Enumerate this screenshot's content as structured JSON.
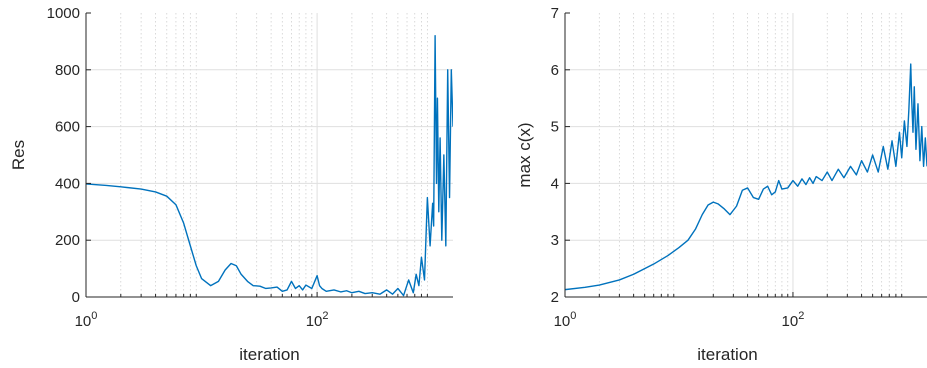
{
  "chart_data": [
    {
      "type": "line",
      "xlabel": "iteration",
      "ylabel": "Res",
      "xscale": "log",
      "xlim": [
        1,
        1500
      ],
      "ylim": [
        0,
        1000
      ],
      "xticks": [
        1,
        100
      ],
      "xtick_labels": [
        {
          "base": "10",
          "exp": "0"
        },
        {
          "base": "10",
          "exp": "2"
        }
      ],
      "yticks": [
        0,
        200,
        400,
        600,
        800,
        1000
      ],
      "ytick_labels": [
        "0",
        "200",
        "400",
        "600",
        "800",
        "1000"
      ],
      "grid": true,
      "color": "#0072bd",
      "series": [
        {
          "x": [
            1,
            1.5,
            2,
            3,
            4,
            5,
            6,
            7,
            8,
            9,
            10,
            12,
            14,
            16,
            18,
            20,
            22,
            25,
            28,
            32,
            36,
            40,
            45,
            50,
            55,
            60,
            65,
            70,
            75,
            80,
            90,
            100,
            105,
            110,
            120,
            140,
            160,
            180,
            200,
            230,
            260,
            300,
            350,
            400,
            450,
            500,
            560,
            620,
            680,
            720,
            760,
            800,
            850,
            900,
            950,
            1000,
            1020,
            1050,
            1080,
            1100,
            1130,
            1160,
            1200,
            1250,
            1300,
            1350,
            1400,
            1450,
            1500
          ],
          "y": [
            398,
            393,
            388,
            380,
            370,
            355,
            325,
            260,
            180,
            110,
            65,
            40,
            55,
            95,
            118,
            110,
            80,
            55,
            40,
            38,
            30,
            32,
            35,
            20,
            25,
            55,
            30,
            40,
            25,
            42,
            30,
            75,
            40,
            30,
            20,
            25,
            18,
            22,
            15,
            20,
            12,
            15,
            10,
            25,
            10,
            30,
            5,
            60,
            15,
            80,
            40,
            140,
            60,
            350,
            180,
            330,
            250,
            920,
            400,
            700,
            300,
            560,
            200,
            500,
            180,
            800,
            350,
            800,
            600
          ]
        }
      ]
    },
    {
      "type": "line",
      "xlabel": "iteration",
      "ylabel": "max c(x)",
      "xscale": "log",
      "xlim": [
        1,
        1500
      ],
      "ylim": [
        2,
        7
      ],
      "xticks": [
        1,
        100
      ],
      "xtick_labels": [
        {
          "base": "10",
          "exp": "0"
        },
        {
          "base": "10",
          "exp": "2"
        }
      ],
      "yticks": [
        2,
        3,
        4,
        5,
        6,
        7
      ],
      "ytick_labels": [
        "2",
        "3",
        "4",
        "5",
        "6",
        "7"
      ],
      "grid": true,
      "color": "#0072bd",
      "series": [
        {
          "x": [
            1,
            1.5,
            2,
            3,
            4,
            5,
            6,
            8,
            10,
            12,
            14,
            16,
            18,
            20,
            22,
            25,
            28,
            32,
            36,
            40,
            45,
            50,
            55,
            60,
            65,
            70,
            75,
            80,
            90,
            100,
            110,
            120,
            130,
            140,
            150,
            160,
            180,
            200,
            220,
            250,
            280,
            320,
            360,
            400,
            450,
            500,
            560,
            620,
            680,
            740,
            800,
            860,
            900,
            950,
            1000,
            1040,
            1080,
            1100,
            1130,
            1160,
            1200,
            1250,
            1300,
            1350,
            1400,
            1450,
            1500
          ],
          "y": [
            2.13,
            2.17,
            2.21,
            2.3,
            2.4,
            2.5,
            2.58,
            2.73,
            2.87,
            3.0,
            3.2,
            3.45,
            3.62,
            3.67,
            3.64,
            3.55,
            3.45,
            3.6,
            3.88,
            3.92,
            3.75,
            3.72,
            3.9,
            3.95,
            3.8,
            3.85,
            4.05,
            3.9,
            3.92,
            4.05,
            3.95,
            4.08,
            3.98,
            4.1,
            4.0,
            4.12,
            4.05,
            4.2,
            4.05,
            4.25,
            4.1,
            4.3,
            4.15,
            4.4,
            4.2,
            4.5,
            4.2,
            4.65,
            4.25,
            4.75,
            4.3,
            4.9,
            4.45,
            5.1,
            4.65,
            5.3,
            6.1,
            5.5,
            4.9,
            5.7,
            4.6,
            5.4,
            4.4,
            5.0,
            4.3,
            4.8,
            4.3
          ]
        }
      ]
    }
  ]
}
